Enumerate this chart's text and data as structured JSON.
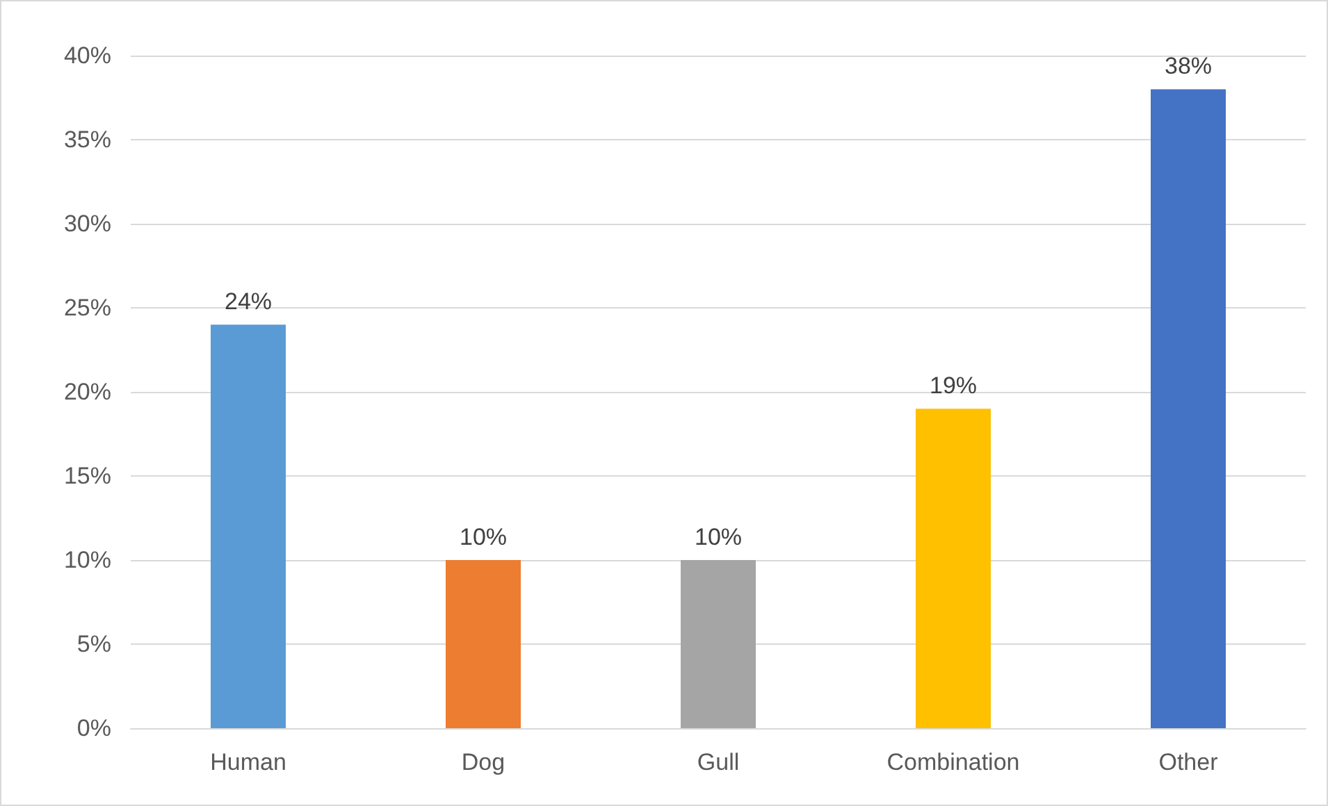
{
  "chart_data": {
    "type": "bar",
    "categories": [
      "Human",
      "Dog",
      "Gull",
      "Combination",
      "Other"
    ],
    "values": [
      24,
      10,
      10,
      19,
      38
    ],
    "colors": [
      "#5b9bd5",
      "#ed7d31",
      "#a5a5a5",
      "#ffc000",
      "#4472c4"
    ],
    "value_labels": [
      "24%",
      "10%",
      "10%",
      "19%",
      "38%"
    ],
    "ylim": [
      0,
      40
    ],
    "yticks": [
      {
        "value": 0,
        "label": "0%"
      },
      {
        "value": 5,
        "label": "5%"
      },
      {
        "value": 10,
        "label": "10%"
      },
      {
        "value": 15,
        "label": "15%"
      },
      {
        "value": 20,
        "label": "20%"
      },
      {
        "value": 25,
        "label": "25%"
      },
      {
        "value": 30,
        "label": "30%"
      },
      {
        "value": 35,
        "label": "35%"
      },
      {
        "value": 40,
        "label": "40%"
      }
    ],
    "grid": "y"
  }
}
